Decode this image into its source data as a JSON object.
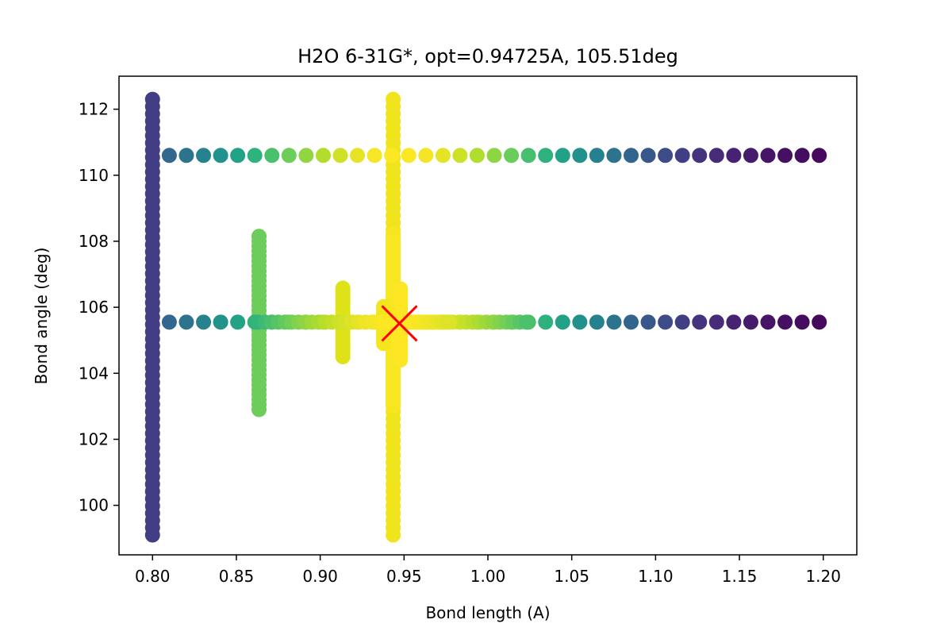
{
  "chart_data": {
    "type": "scatter",
    "title": "H2O 6-31G*, opt=0.94725A, 105.51deg",
    "xlabel": "Bond length (A)",
    "ylabel": "Bond angle (deg)",
    "xlim": [
      0.78,
      1.22
    ],
    "ylim": [
      98.5,
      113.0
    ],
    "xticks": [
      "0.80",
      "0.85",
      "0.90",
      "0.95",
      "1.00",
      "1.05",
      "1.10",
      "1.15",
      "1.20"
    ],
    "yticks": [
      "100",
      "102",
      "104",
      "106",
      "108",
      "110",
      "112"
    ],
    "grid": false,
    "colormap": "viridis",
    "optimum": {
      "x": 0.94725,
      "y": 105.51,
      "marker": "x",
      "color": "#ff0000"
    },
    "scans": [
      {
        "axis": "y",
        "x": 0.8,
        "from": 99.1,
        "to": 112.3,
        "step": 0.22,
        "color": "#433d84"
      },
      {
        "axis": "y",
        "x": 0.9435,
        "from": 99.1,
        "to": 112.3,
        "step": 0.22,
        "color": "#f0e51c"
      },
      {
        "axis": "y",
        "x": 0.8635,
        "from": 102.9,
        "to": 108.2,
        "step": 0.15,
        "color": "#6ccd5a"
      },
      {
        "axis": "y",
        "x": 0.9435,
        "from": 103.0,
        "to": 108.2,
        "step": 0.1,
        "color": "#f8e621"
      },
      {
        "axis": "y",
        "x": 0.9135,
        "from": 104.5,
        "to": 106.6,
        "step": 0.08,
        "color": "#dde318"
      },
      {
        "axis": "y",
        "x": 0.9478,
        "from": 104.4,
        "to": 106.6,
        "step": 0.08,
        "color": "#fde725"
      },
      {
        "axis": "y",
        "x": 0.9378,
        "from": 104.9,
        "to": 106.0,
        "step": 0.08,
        "color": "#f4e61e"
      },
      {
        "axis": "x",
        "y": 110.6,
        "from": 0.81,
        "to": 1.2,
        "step": 0.0102,
        "colors_by_x": true
      },
      {
        "axis": "x",
        "y": 105.55,
        "from": 0.81,
        "to": 1.2,
        "step": 0.0102,
        "colors_by_x": true
      },
      {
        "axis": "x",
        "y": 105.55,
        "from": 0.863,
        "to": 1.025,
        "step": 0.004,
        "colors_by_x": true
      },
      {
        "axis": "x",
        "y": 105.55,
        "from": 0.935,
        "to": 0.977,
        "step": 0.0015,
        "colors_by_x": true
      }
    ]
  }
}
